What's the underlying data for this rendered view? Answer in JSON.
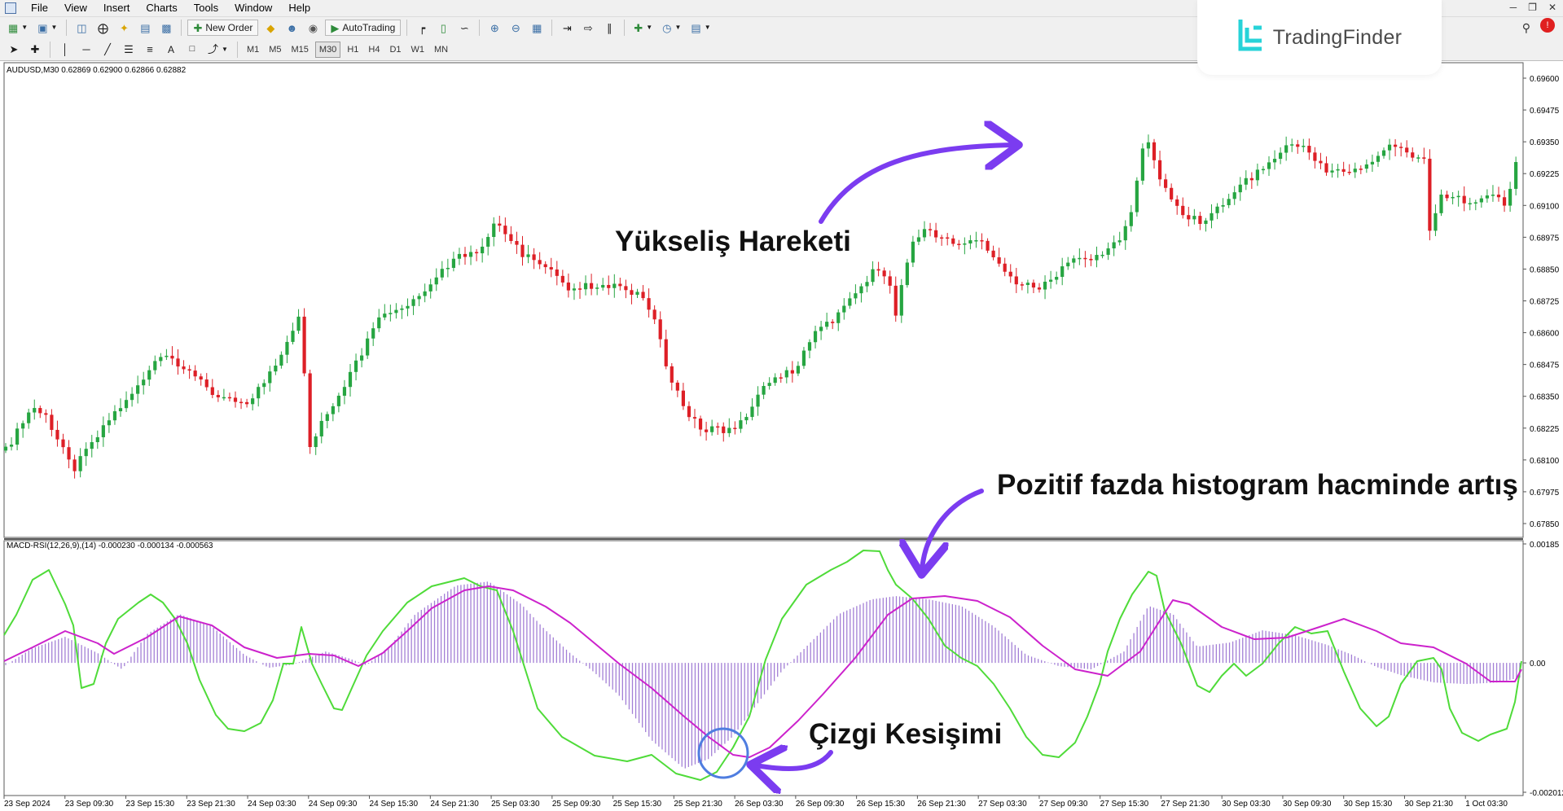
{
  "menu": {
    "items": [
      "File",
      "View",
      "Insert",
      "Charts",
      "Tools",
      "Window",
      "Help"
    ]
  },
  "toolbar": {
    "new_order_label": "New Order",
    "autotrading_label": "AutoTrading",
    "timeframes": [
      "M1",
      "M5",
      "M15",
      "M30",
      "H1",
      "H4",
      "D1",
      "W1",
      "MN"
    ],
    "active_timeframe": "M30"
  },
  "brand": {
    "name": "TradingFinder",
    "accent_color": "#27d3d8"
  },
  "main_chart": {
    "header": "AUDUSD,M30  0.62869 0.62900 0.62866 0.62882",
    "price_ticks": [
      "0.69600",
      "0.69475",
      "0.69350",
      "0.69225",
      "0.69100",
      "0.68975",
      "0.68850",
      "0.68725",
      "0.68600",
      "0.68475",
      "0.68350",
      "0.68225",
      "0.68100",
      "0.67975",
      "0.67850"
    ],
    "bull_color": "#26a541",
    "bear_color": "#dd1f26"
  },
  "indicator": {
    "header": "MACD-RSI(12,26,9),(14) -0.000230 -0.000134 -0.000563",
    "ticks": [
      "0.00185",
      "0.00",
      "-0.002012"
    ],
    "histogram_color": "#a37fd6",
    "signal_color": "#cc22cc",
    "rsi_color": "#4fdb39"
  },
  "time_axis": {
    "labels": [
      "23 Sep 2024",
      "23 Sep 09:30",
      "23 Sep 15:30",
      "23 Sep 21:30",
      "24 Sep 03:30",
      "24 Sep 09:30",
      "24 Sep 15:30",
      "24 Sep 21:30",
      "25 Sep 03:30",
      "25 Sep 09:30",
      "25 Sep 15:30",
      "25 Sep 21:30",
      "26 Sep 03:30",
      "26 Sep 09:30",
      "26 Sep 15:30",
      "26 Sep 21:30",
      "27 Sep 03:30",
      "27 Sep 09:30",
      "27 Sep 15:30",
      "27 Sep 21:30",
      "30 Sep 03:30",
      "30 Sep 09:30",
      "30 Sep 15:30",
      "30 Sep 21:30",
      "1 Oct 03:30"
    ]
  },
  "annotations": {
    "uptrend": "Yükseliş Hareketi",
    "histogram_increase": "Pozitif fazda histogram hacminde artış",
    "line_cross": "Çizgi Kesişimi",
    "arrow_color": "#7b3cf0"
  }
}
